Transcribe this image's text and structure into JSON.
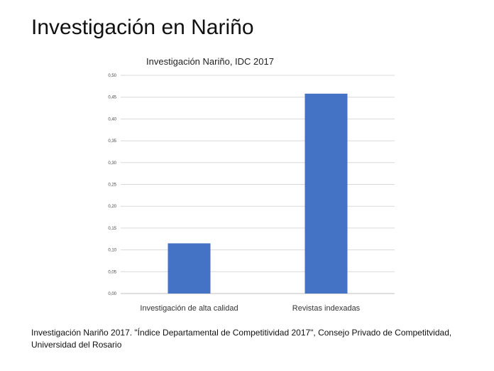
{
  "slide": {
    "title": "Investigación en Nariño",
    "caption_line1": "Investigación Nariño 2017. \"Índice Departamental de Competitividad 2017\", Consejo Privado de Competitvidad,",
    "caption_line2": "Universidad del Rosario"
  },
  "colors": {
    "bar": "#4472C4",
    "grid": "#d9d9d9",
    "axis": "#bfbfbf"
  },
  "chart_data": {
    "type": "bar",
    "title": "Investigación Nariño, IDC  2017",
    "categories": [
      "Investigación de alta calidad",
      "Revistas indexadas"
    ],
    "values": [
      0.115,
      0.458
    ],
    "ylim": [
      0,
      0.5
    ],
    "yticks": [
      "0,00",
      "0,05",
      "0,10",
      "0,15",
      "0,20",
      "0,25",
      "0,30",
      "0,35",
      "0,40",
      "0,45",
      "0,50"
    ],
    "xlabel": "",
    "ylabel": "",
    "grid": true,
    "legend": "none"
  }
}
